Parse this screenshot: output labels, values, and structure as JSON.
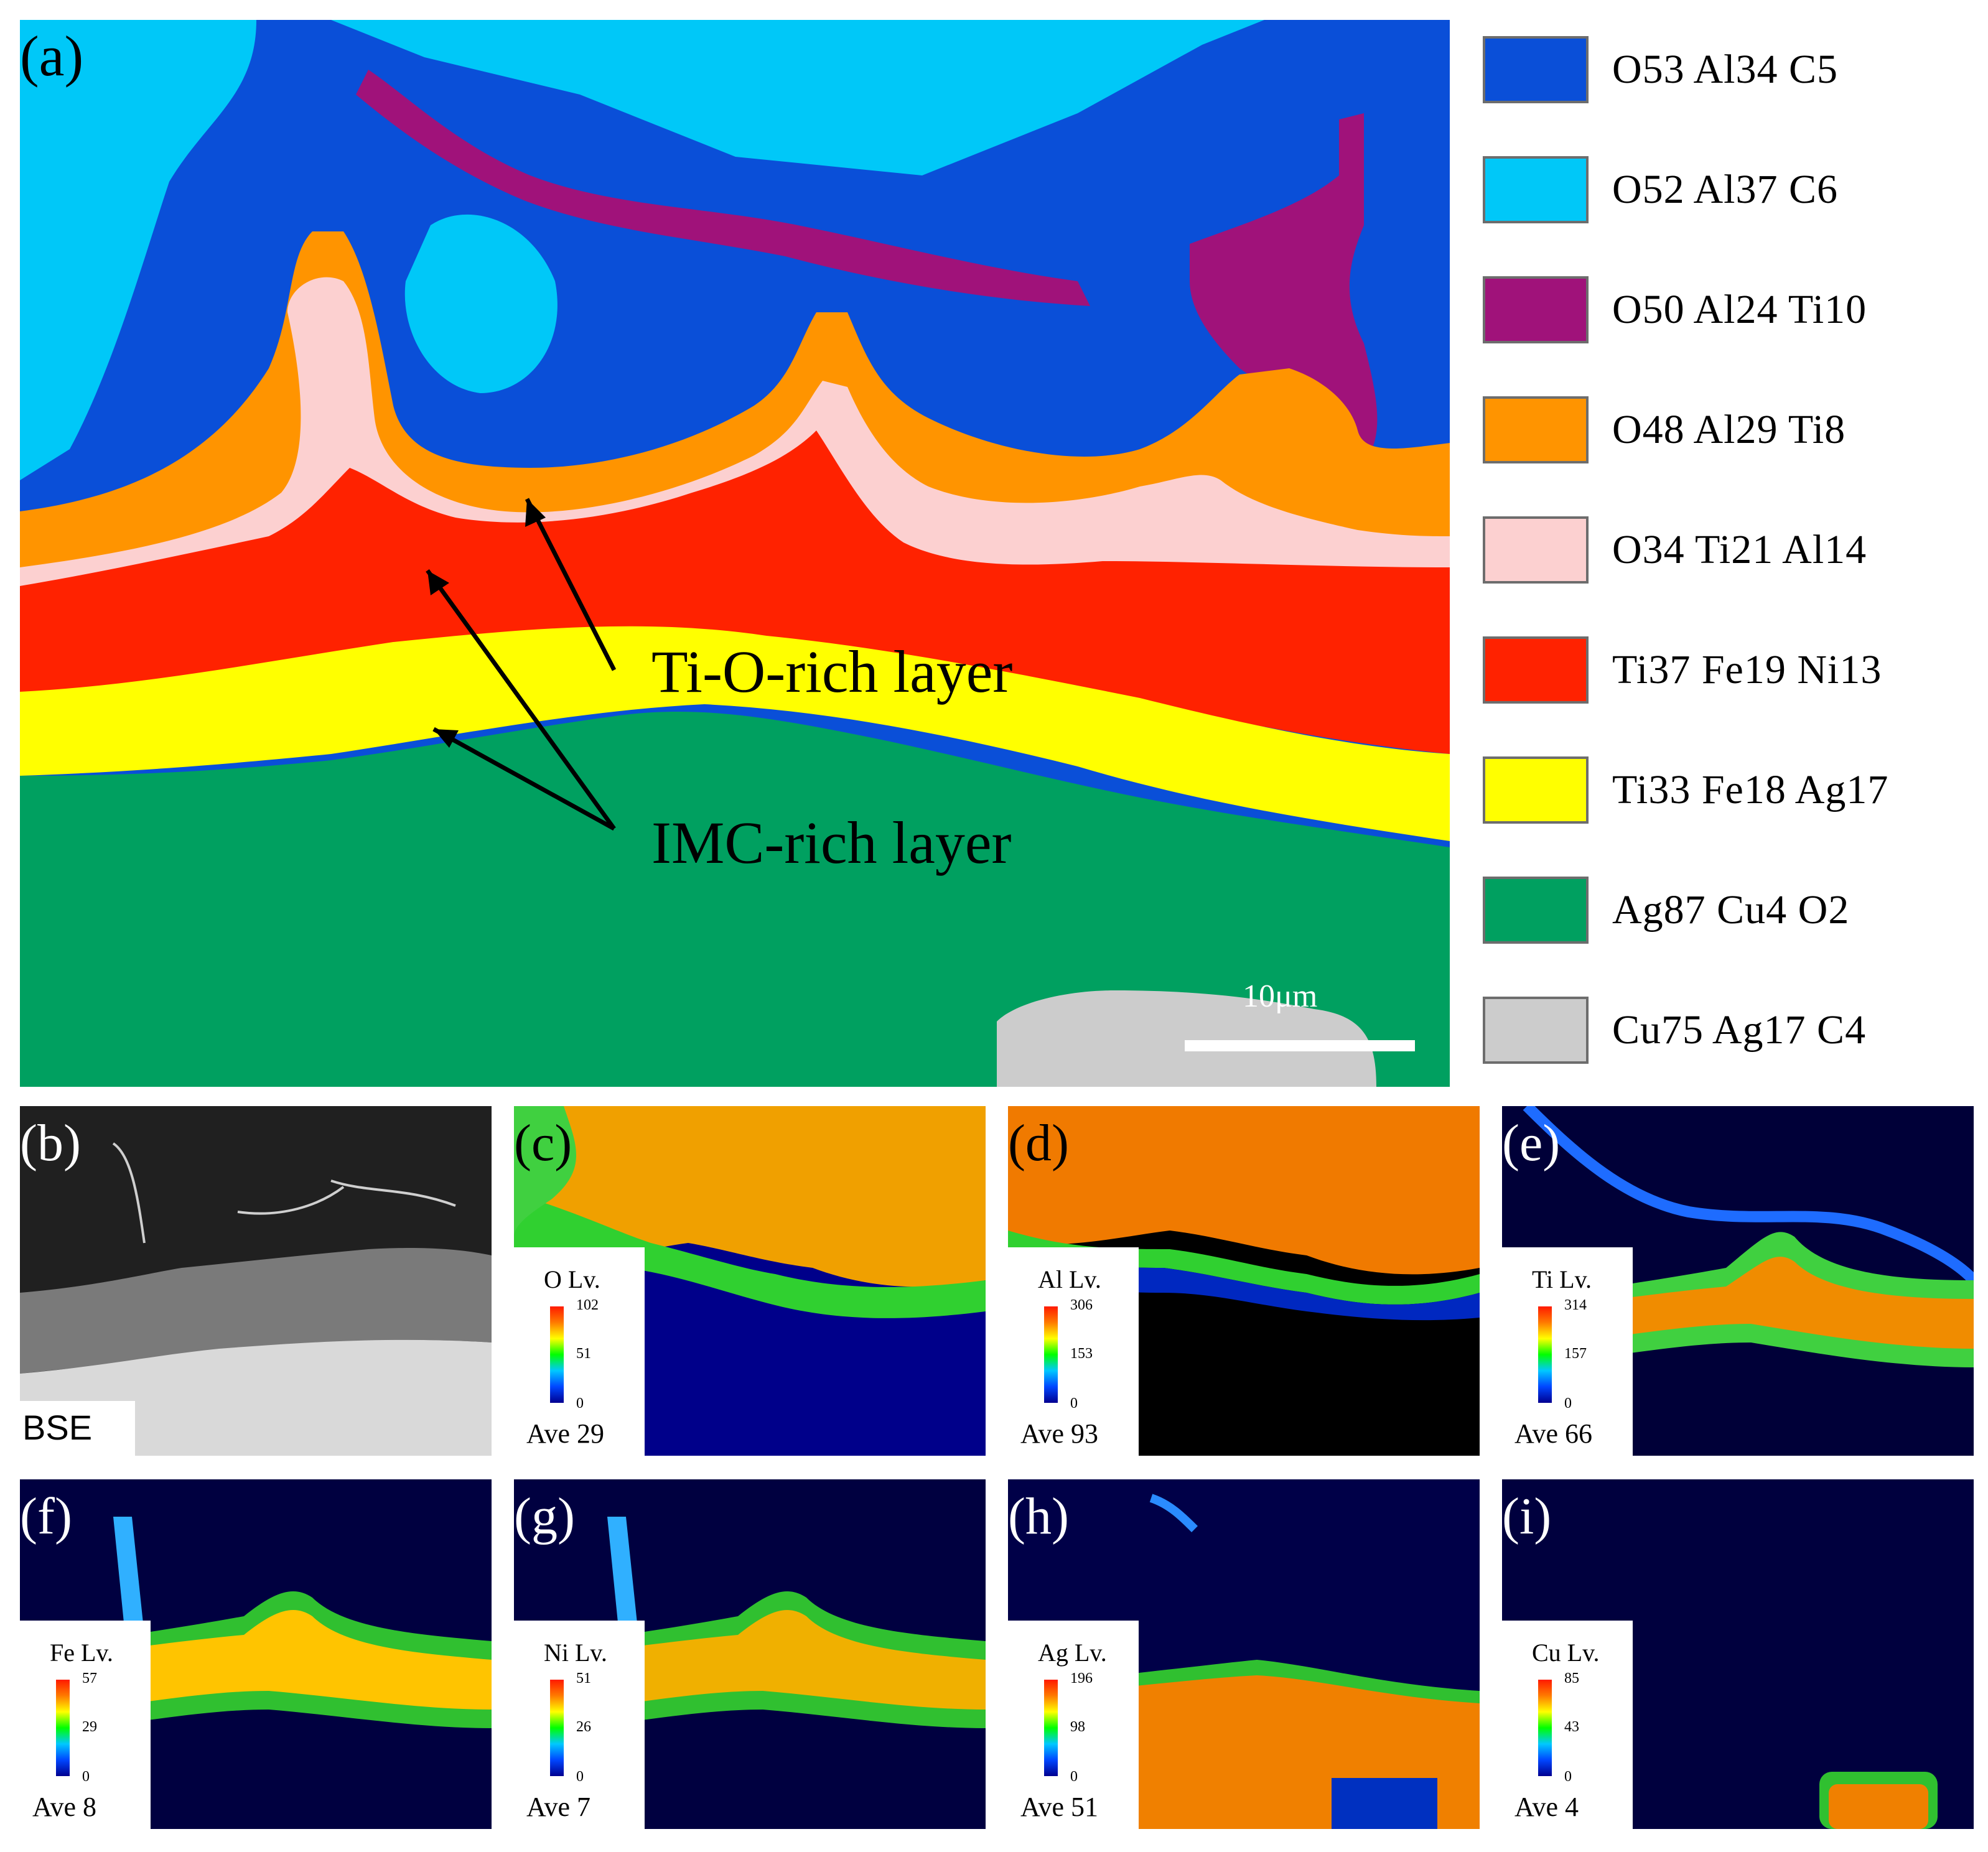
{
  "panel_a": {
    "letter": "(a)",
    "annotation_ti_o": "Ti-O-rich  layer",
    "annotation_imc": "IMC-rich  layer",
    "scale_bar": "10μm"
  },
  "legend": [
    {
      "label": "O53  Al34  C5",
      "color": "#0a4fd8"
    },
    {
      "label": "O52  Al37  C6",
      "color": "#00c8f8"
    },
    {
      "label": "O50  Al24  Ti10",
      "color": "#a0127a"
    },
    {
      "label": "O48  Al29  Ti8",
      "color": "#ff9400"
    },
    {
      "label": "O34  Ti21  Al14",
      "color": "#fcd0d0"
    },
    {
      "label": "Ti37  Fe19  Ni13",
      "color": "#ff2200"
    },
    {
      "label": "Ti33  Fe18  Ag17",
      "color": "#ffff00"
    },
    {
      "label": "Ag87  Cu4  O2",
      "color": "#00a060"
    },
    {
      "label": "Cu75  Ag17  C4",
      "color": "#cccccc"
    }
  ],
  "maps": {
    "b": {
      "letter": "(b)",
      "label": "BSE"
    },
    "c": {
      "letter": "(c)",
      "element": "O  Lv.",
      "max": "102",
      "mid": "51",
      "min": "0",
      "ave": "Ave 29"
    },
    "d": {
      "letter": "(d)",
      "element": "Al Lv.",
      "max": "306",
      "mid": "153",
      "min": "0",
      "ave": "Ave 93"
    },
    "e": {
      "letter": "(e)",
      "element": "Ti Lv.",
      "max": "314",
      "mid": "157",
      "min": "0",
      "ave": "Ave 66"
    },
    "f": {
      "letter": "(f)",
      "element": "Fe Lv.",
      "max": "57",
      "mid": "29",
      "min": "0",
      "ave": "Ave 8"
    },
    "g": {
      "letter": "(g)",
      "element": "Ni Lv.",
      "max": "51",
      "mid": "26",
      "min": "0",
      "ave": "Ave 7"
    },
    "h": {
      "letter": "(h)",
      "element": "Ag Lv.",
      "max": "196",
      "mid": "98",
      "min": "0",
      "ave": "Ave 51"
    },
    "i": {
      "letter": "(i)",
      "element": "Cu Lv.",
      "max": "85",
      "mid": "43",
      "min": "0",
      "ave": "Ave 4"
    }
  }
}
